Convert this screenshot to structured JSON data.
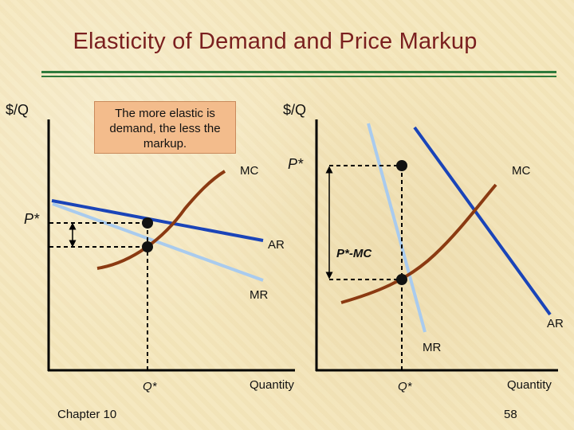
{
  "slide": {
    "title": "Elasticity of Demand and Price Markup",
    "note": "The more elastic is demand, the less the markup.",
    "footer_left": "Chapter 10",
    "page_number": "58",
    "colors": {
      "title": "#7a1f1f",
      "rule": "#2f7a3c",
      "ar_curve": "#1a44b8",
      "mr_curve": "#a9cbee",
      "mc_curve": "#8b3a12",
      "note_bg": "#f3bc8c"
    }
  },
  "left_graph": {
    "y_axis_label": "$/Q",
    "x_axis_label": "Quantity",
    "mc_label": "MC",
    "ar_label": "AR",
    "mr_label": "MR",
    "p_star_label": "P*",
    "q_star_label": "Q*"
  },
  "right_graph": {
    "y_axis_label": "$/Q",
    "x_axis_label": "Quantity",
    "mc_label": "MC",
    "ar_label": "AR",
    "mr_label": "MR",
    "p_star_label": "P*",
    "q_star_label": "Q*",
    "markup_label": "P*-MC"
  }
}
